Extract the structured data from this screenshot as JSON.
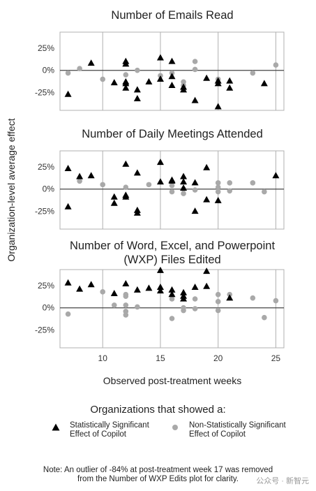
{
  "y_axis_label": "Organization-level average effect",
  "x_axis_label": "Observed post-treatment weeks",
  "legend": {
    "title": "Organizations that showed a:",
    "significant": [
      "Statistically Significant",
      "Effect of Copilot"
    ],
    "non_significant": [
      "Non-Statistically Significant",
      "Effect of Copilot"
    ]
  },
  "note": [
    "Note: An outlier of -84% at post-treatment week 17 was removed",
    "from the Number of WXP Edits plot for clarity."
  ],
  "watermark": "公众号 · 新智元",
  "colors": {
    "significant": "#000000",
    "non_significant": "#a9a9a9",
    "zero_line": "#444444",
    "grid": "#b0b0b0"
  },
  "chart_data": [
    {
      "type": "scatter",
      "title": [
        "Number of Emails Read"
      ],
      "xlim": [
        6.3,
        25.7
      ],
      "ylim": [
        -45,
        43
      ],
      "yticks": [
        25,
        0,
        -25
      ],
      "ytick_labels": [
        "25%",
        "0%",
        "-25%"
      ],
      "series": [
        {
          "name": "Statistically Significant Effect of Copilot",
          "marker": "triangle",
          "points": [
            [
              7,
              -27
            ],
            [
              9,
              8
            ],
            [
              11,
              -14
            ],
            [
              12,
              10
            ],
            [
              12,
              7
            ],
            [
              12,
              -13
            ],
            [
              12,
              -15
            ],
            [
              12,
              -20
            ],
            [
              13,
              -22
            ],
            [
              13,
              -32
            ],
            [
              14,
              -13
            ],
            [
              15,
              14
            ],
            [
              15,
              -10
            ],
            [
              16,
              10
            ],
            [
              16,
              -7
            ],
            [
              16,
              -17
            ],
            [
              17,
              -19
            ],
            [
              17,
              -22
            ],
            [
              18,
              -34
            ],
            [
              19,
              -9
            ],
            [
              20,
              -12
            ],
            [
              20,
              -15
            ],
            [
              20,
              -41
            ],
            [
              21,
              -12
            ],
            [
              21,
              -20
            ],
            [
              24,
              -15
            ]
          ]
        },
        {
          "name": "Non-Statistically Significant Effect of Copilot",
          "marker": "circle",
          "points": [
            [
              7,
              -3
            ],
            [
              8,
              2
            ],
            [
              10,
              -10
            ],
            [
              12,
              -5
            ],
            [
              13,
              0
            ],
            [
              15,
              -6
            ],
            [
              16,
              -3
            ],
            [
              17,
              -13
            ],
            [
              17,
              -17
            ],
            [
              18,
              10
            ],
            [
              18,
              1
            ],
            [
              20,
              -10
            ],
            [
              23,
              -3
            ],
            [
              25,
              6
            ]
          ]
        }
      ]
    },
    {
      "type": "scatter",
      "title": [
        "Number of Daily Meetings Attended"
      ],
      "xlim": [
        6.3,
        25.7
      ],
      "ylim": [
        -45,
        43
      ],
      "yticks": [
        25,
        0,
        -25
      ],
      "ytick_labels": [
        "25%",
        "0%",
        "-25%"
      ],
      "series": [
        {
          "name": "Statistically Significant Effect of Copilot",
          "marker": "triangle",
          "points": [
            [
              7,
              23
            ],
            [
              7,
              -20
            ],
            [
              8,
              14
            ],
            [
              9,
              15
            ],
            [
              11,
              -9
            ],
            [
              11,
              -16
            ],
            [
              12,
              28
            ],
            [
              12,
              -7
            ],
            [
              12,
              -9
            ],
            [
              13,
              18
            ],
            [
              13,
              -24
            ],
            [
              13,
              -27
            ],
            [
              15,
              30
            ],
            [
              15,
              8
            ],
            [
              16,
              10
            ],
            [
              16,
              9
            ],
            [
              17,
              14
            ],
            [
              17,
              8
            ],
            [
              17,
              1
            ],
            [
              18,
              7
            ],
            [
              18,
              -25
            ],
            [
              19,
              24
            ],
            [
              19,
              -12
            ],
            [
              20,
              -13
            ],
            [
              25,
              15
            ]
          ]
        },
        {
          "name": "Non-Statistically Significant Effect of Copilot",
          "marker": "circle",
          "points": [
            [
              8,
              9
            ],
            [
              10,
              5
            ],
            [
              12,
              2
            ],
            [
              12,
              -9
            ],
            [
              14,
              5
            ],
            [
              16,
              4
            ],
            [
              16,
              -3
            ],
            [
              17,
              0
            ],
            [
              17,
              -5
            ],
            [
              18,
              -1
            ],
            [
              20,
              7
            ],
            [
              20,
              2
            ],
            [
              20,
              -3
            ],
            [
              21,
              7
            ],
            [
              21,
              -2
            ],
            [
              23,
              7
            ],
            [
              24,
              -3
            ]
          ]
        }
      ]
    },
    {
      "type": "scatter",
      "title": [
        "Number of Word, Excel, and Powerpoint",
        "(WXP) Files Edited"
      ],
      "xlim": [
        6.3,
        25.7
      ],
      "ylim": [
        -45,
        43
      ],
      "yticks": [
        25,
        0,
        -25
      ],
      "ytick_labels": [
        "25%",
        "0%",
        "-25%"
      ],
      "xticks": [
        10,
        15,
        20,
        25
      ],
      "xtick_labels": [
        "10",
        "15",
        "20",
        "25"
      ],
      "series": [
        {
          "name": "Statistically Significant Effect of Copilot",
          "marker": "triangle",
          "points": [
            [
              7,
              28
            ],
            [
              8,
              21
            ],
            [
              9,
              26
            ],
            [
              11,
              16
            ],
            [
              12,
              27
            ],
            [
              13,
              20
            ],
            [
              14,
              22
            ],
            [
              15,
              42
            ],
            [
              15,
              23
            ],
            [
              15,
              19
            ],
            [
              16,
              20
            ],
            [
              16,
              15
            ],
            [
              17,
              17
            ],
            [
              17,
              13
            ],
            [
              17,
              10
            ],
            [
              18,
              23
            ],
            [
              19,
              41
            ],
            [
              19,
              24
            ],
            [
              21,
              11
            ]
          ]
        },
        {
          "name": "Non-Statistically Significant Effect of Copilot",
          "marker": "circle",
          "points": [
            [
              7,
              -7
            ],
            [
              10,
              18
            ],
            [
              11,
              3
            ],
            [
              12,
              15
            ],
            [
              12,
              13
            ],
            [
              12,
              3
            ],
            [
              12,
              -4
            ],
            [
              12,
              -8
            ],
            [
              13,
              1
            ],
            [
              16,
              10
            ],
            [
              16,
              -12
            ],
            [
              17,
              -3
            ],
            [
              17,
              0
            ],
            [
              18,
              10
            ],
            [
              18,
              -1
            ],
            [
              20,
              15
            ],
            [
              20,
              7
            ],
            [
              20,
              -3
            ],
            [
              21,
              15
            ],
            [
              23,
              11
            ],
            [
              24,
              -11
            ],
            [
              25,
              8
            ]
          ]
        }
      ]
    }
  ]
}
